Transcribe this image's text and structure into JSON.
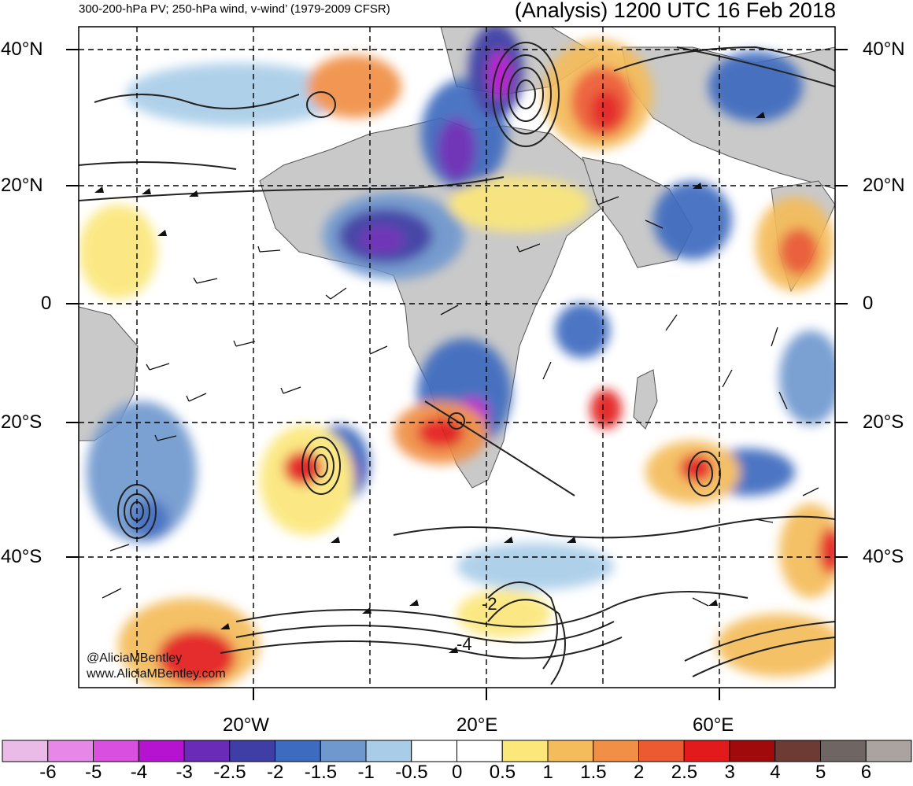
{
  "title": {
    "left": "300-200-hPa PV; 250-hPa wind, v-wind’ (1979-2009 CFSR)",
    "right": "(Analysis) 1200 UTC 16 Feb 2018"
  },
  "credit": {
    "handle": "@AliciaMBentley",
    "website": "www.AliciaMBentley.com"
  },
  "lat_labels": [
    "40°N",
    "20°N",
    "0",
    "20°S",
    "40°S"
  ],
  "lon_labels": [
    "20°W",
    "20°E",
    "60°E"
  ],
  "contour_labels": [
    "-2",
    "-4"
  ],
  "colorbar": {
    "ticks": [
      "-6",
      "-5",
      "-4",
      "-3",
      "-2.5",
      "-2",
      "-1.5",
      "-1",
      "-0.5",
      "0",
      "0.5",
      "1",
      "1.5",
      "2",
      "2.5",
      "3",
      "4",
      "5",
      "6"
    ],
    "colors": [
      "#ebbbe8",
      "#e787e8",
      "#d94fdf",
      "#b513cf",
      "#6a2bb7",
      "#3e3ea6",
      "#3c6bbf",
      "#6f98cf",
      "#a9cde8",
      "#ffffff",
      "#ffffff",
      "#fbe77a",
      "#f4bc5a",
      "#f08f45",
      "#ec5a32",
      "#e31a1c",
      "#a10a0a",
      "#6e3a34",
      "#6f6663",
      "#aaa3a0"
    ]
  },
  "colors": {
    "land_gray": "#c9c9c9",
    "contour": "#222222",
    "grid": "#000000"
  }
}
